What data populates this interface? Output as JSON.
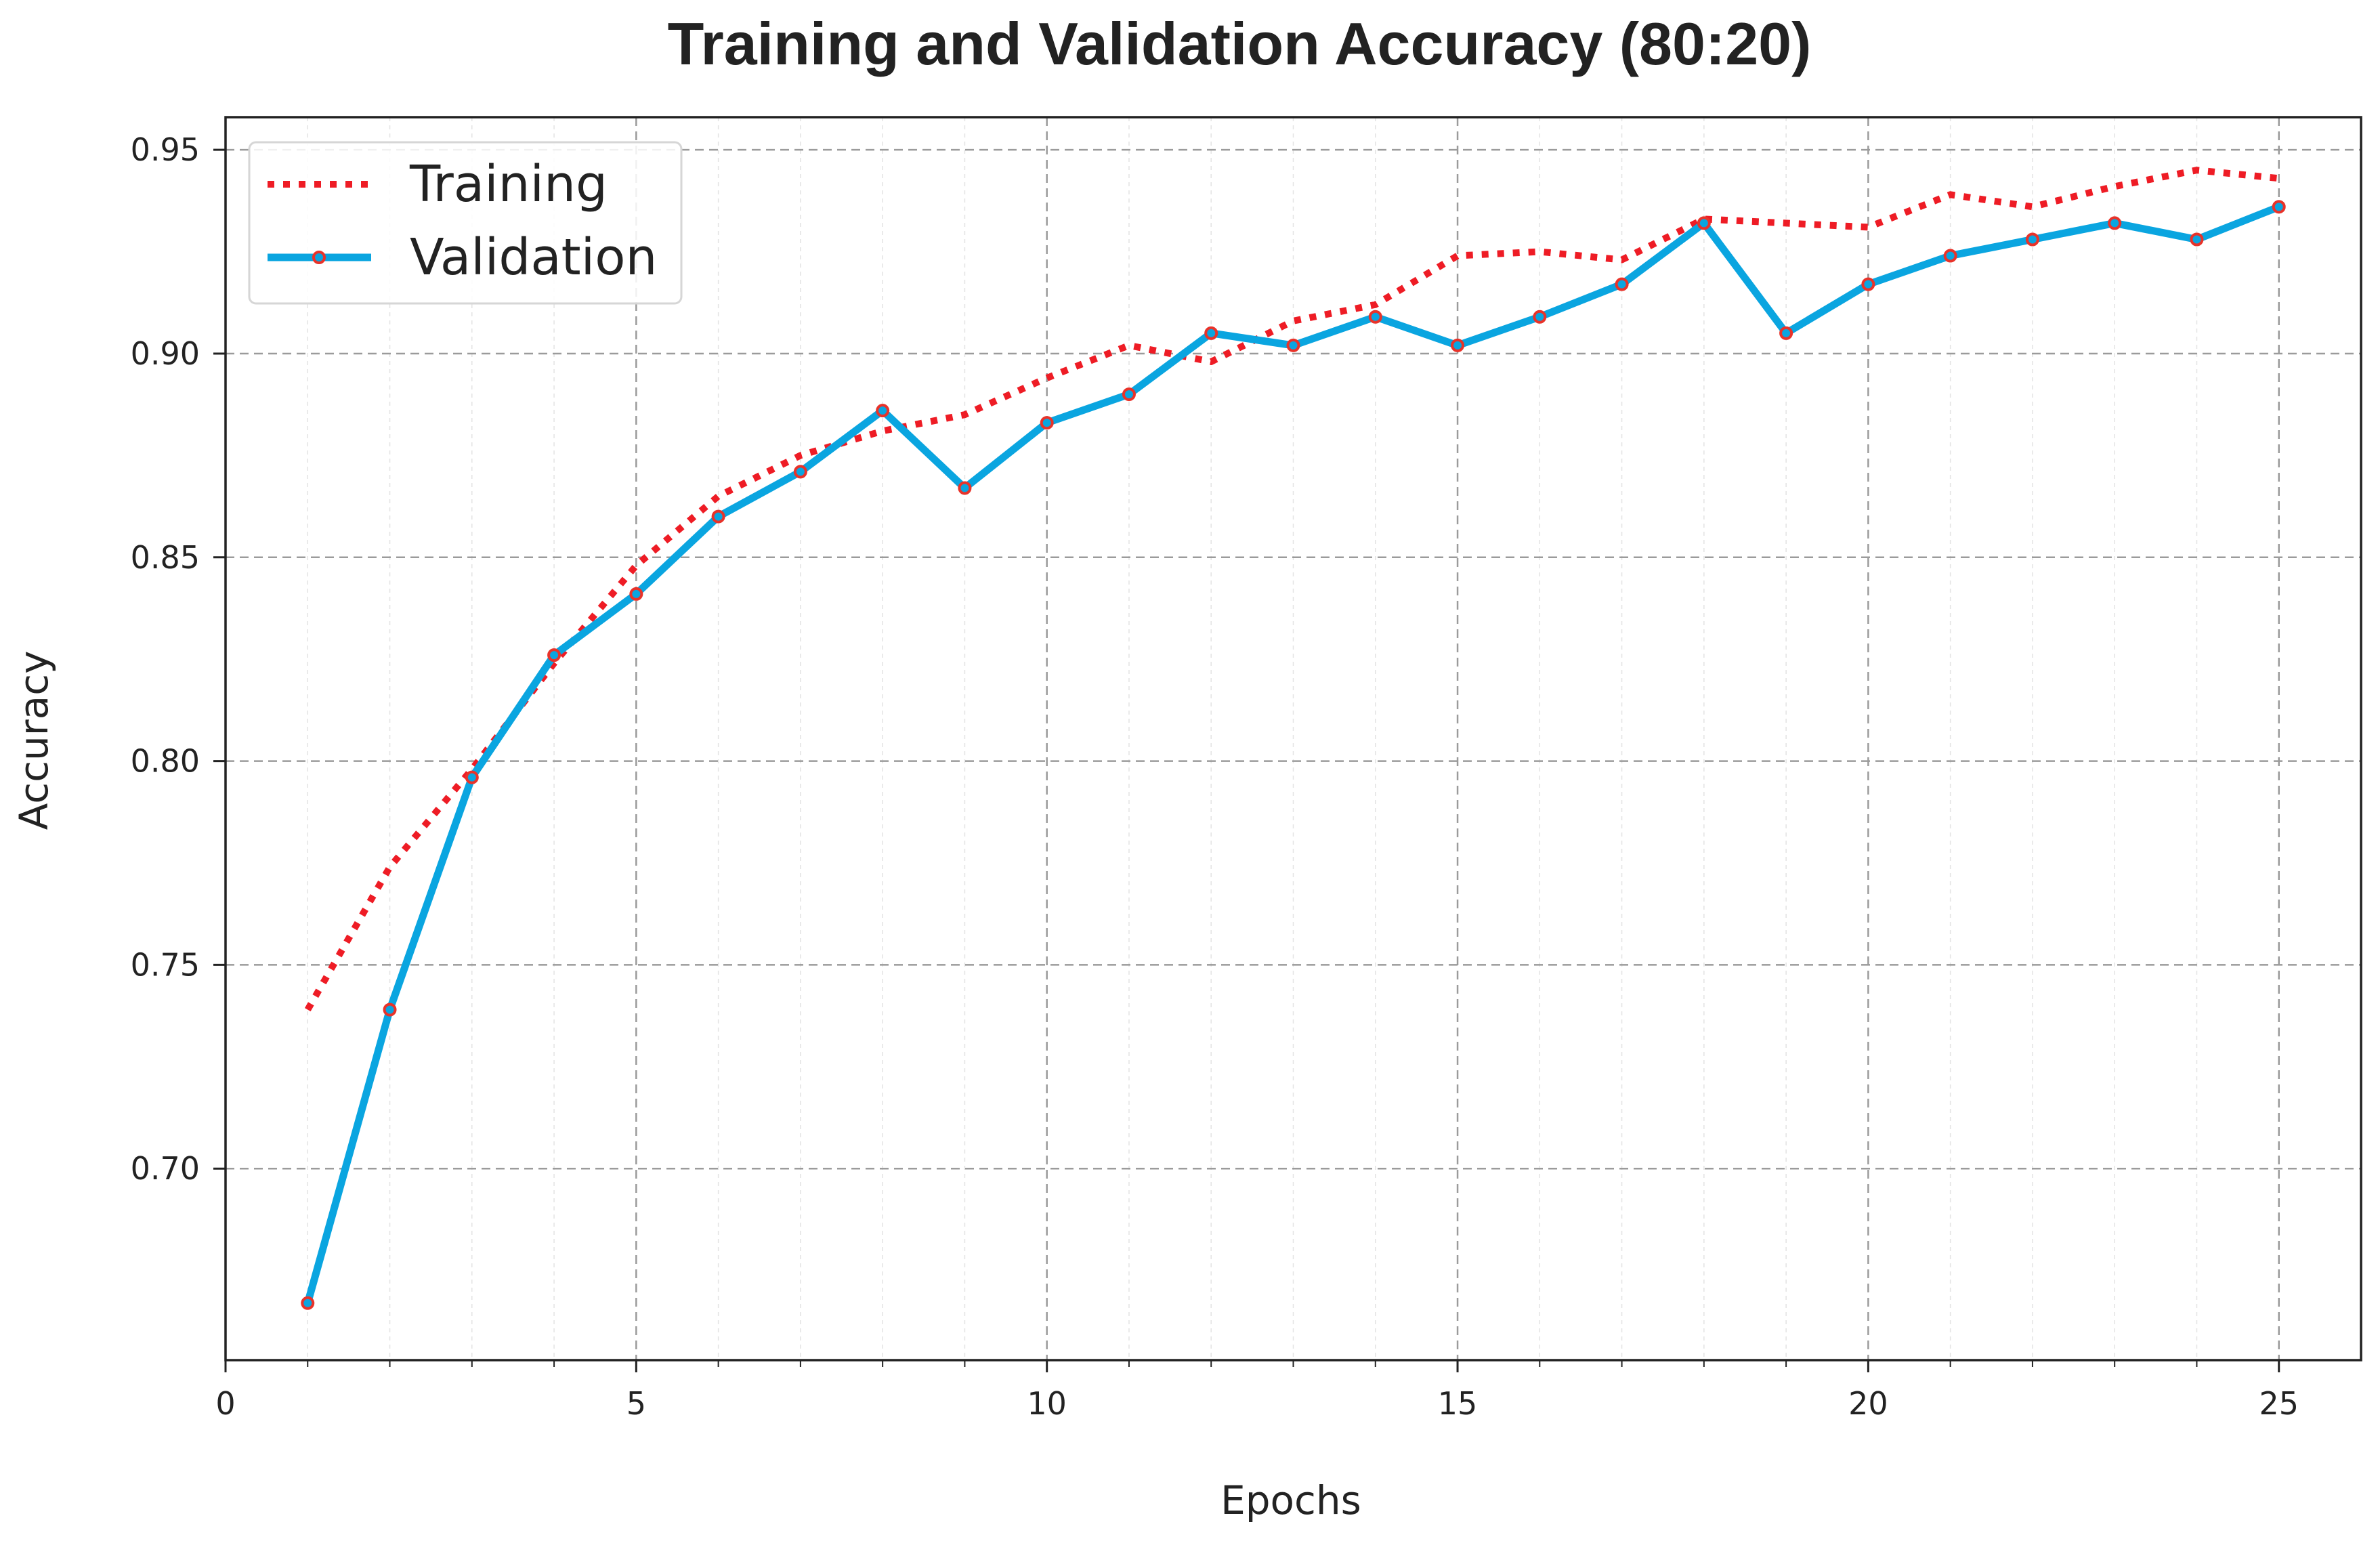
{
  "chart_data": {
    "type": "line",
    "title": "Training and Validation Accuracy (80:20)",
    "xlabel": "Epochs",
    "ylabel": "Accuracy",
    "xlim": [
      0,
      26
    ],
    "ylim": [
      0.653,
      0.958
    ],
    "x_ticks": [
      0,
      5,
      10,
      15,
      20,
      25
    ],
    "x_tick_labels": [
      "0",
      "5",
      "10",
      "15",
      "20",
      "25"
    ],
    "y_ticks": [
      0.7,
      0.75,
      0.8,
      0.85,
      0.9,
      0.95
    ],
    "y_tick_labels": [
      "0.70",
      "0.75",
      "0.80",
      "0.85",
      "0.90",
      "0.95"
    ],
    "grid": true,
    "legend_position": "top-left",
    "x": [
      1,
      2,
      3,
      4,
      5,
      6,
      7,
      8,
      9,
      10,
      11,
      12,
      13,
      14,
      15,
      16,
      17,
      18,
      19,
      20,
      21,
      22,
      23,
      24,
      25
    ],
    "series": [
      {
        "name": "Training",
        "color": "#ee1c25",
        "style": "dotted",
        "values": [
          0.739,
          0.774,
          0.798,
          0.824,
          0.848,
          0.865,
          0.875,
          0.881,
          0.885,
          0.894,
          0.902,
          0.898,
          0.908,
          0.912,
          0.924,
          0.925,
          0.923,
          0.933,
          0.932,
          0.931,
          0.939,
          0.936,
          0.941,
          0.945,
          0.943
        ]
      },
      {
        "name": "Validation",
        "color": "#0aa5e0",
        "marker_color": "#e8332a",
        "style": "solid",
        "values": [
          0.667,
          0.739,
          0.796,
          0.826,
          0.841,
          0.86,
          0.871,
          0.886,
          0.867,
          0.883,
          0.89,
          0.905,
          0.902,
          0.909,
          0.902,
          0.909,
          0.917,
          0.932,
          0.905,
          0.917,
          0.924,
          0.928,
          0.932,
          0.928,
          0.936
        ]
      }
    ]
  }
}
